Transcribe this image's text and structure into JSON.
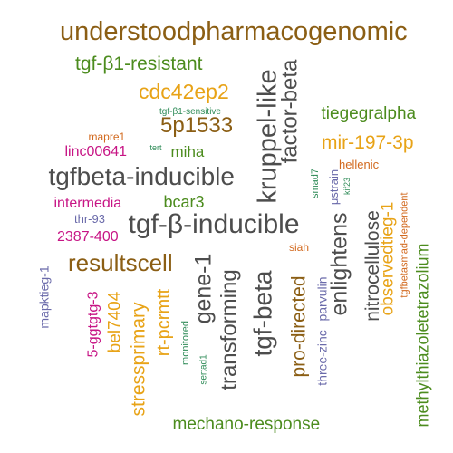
{
  "words": [
    {
      "text": "understoodpharmacogenomic",
      "color": "#8B5E14",
      "rotated": false
    },
    {
      "text": "tgf-β1-resistant",
      "color": "#4C8C1E",
      "rotated": false
    },
    {
      "text": "cdc42ep2",
      "color": "#E8A317",
      "rotated": false
    },
    {
      "text": "tgf-β1-sensitive",
      "color": "#2E8B57",
      "rotated": false
    },
    {
      "text": "5p1533",
      "color": "#8B5E14",
      "rotated": false
    },
    {
      "text": "kruppel-like",
      "color": "#4D4D4D",
      "rotated": true
    },
    {
      "text": "factor-beta",
      "color": "#4D4D4D",
      "rotated": true
    },
    {
      "text": "tiegegralpha",
      "color": "#4C8C1E",
      "rotated": false
    },
    {
      "text": "mapre1",
      "color": "#D2691E",
      "rotated": false
    },
    {
      "text": "mir-197-3p",
      "color": "#E8A317",
      "rotated": false
    },
    {
      "text": "linc00641",
      "color": "#C71585",
      "rotated": false
    },
    {
      "text": "miha",
      "color": "#4C8C1E",
      "rotated": false
    },
    {
      "text": "tert",
      "color": "#2E8B57",
      "rotated": false
    },
    {
      "text": "hellenic",
      "color": "#D2691E",
      "rotated": false
    },
    {
      "text": "tgfbeta-inducible",
      "color": "#4D4D4D",
      "rotated": false
    },
    {
      "text": "smad7",
      "color": "#2E8B57",
      "rotated": true
    },
    {
      "text": "μstrain",
      "color": "#6A6AAA",
      "rotated": true
    },
    {
      "text": "kif23",
      "color": "#2E8B57",
      "rotated": true
    },
    {
      "text": "intermedia",
      "color": "#C71585",
      "rotated": false
    },
    {
      "text": "bcar3",
      "color": "#4C8C1E",
      "rotated": false
    },
    {
      "text": "enlightens",
      "color": "#4D4D4D",
      "rotated": true
    },
    {
      "text": "nitrocellulose",
      "color": "#4D4D4D",
      "rotated": true
    },
    {
      "text": "observedtieg-1",
      "color": "#E8A317",
      "rotated": true
    },
    {
      "text": "tgfbetasmad-dependent",
      "color": "#D2691E",
      "rotated": true
    },
    {
      "text": "thr-93",
      "color": "#6A6AAA",
      "rotated": false
    },
    {
      "text": "tgf-β-inducible",
      "color": "#4D4D4D",
      "rotated": false
    },
    {
      "text": "2387-400",
      "color": "#C71585",
      "rotated": false
    },
    {
      "text": "siah",
      "color": "#D2691E",
      "rotated": false
    },
    {
      "text": "resultscell",
      "color": "#8B5E14",
      "rotated": false
    },
    {
      "text": "mapktieg-1",
      "color": "#6A6AAA",
      "rotated": true
    },
    {
      "text": "5-ggtgtg-3",
      "color": "#C71585",
      "rotated": true
    },
    {
      "text": "bel7404",
      "color": "#E8A317",
      "rotated": true
    },
    {
      "text": "stressprimary",
      "color": "#E8A317",
      "rotated": true
    },
    {
      "text": "rt-pcrmtt",
      "color": "#E8A317",
      "rotated": true
    },
    {
      "text": "monitored",
      "color": "#2E8B57",
      "rotated": true
    },
    {
      "text": "sertad1",
      "color": "#2E8B57",
      "rotated": true
    },
    {
      "text": "gene-1",
      "color": "#4D4D4D",
      "rotated": true
    },
    {
      "text": "transforming",
      "color": "#4D4D4D",
      "rotated": true
    },
    {
      "text": "tgf-beta",
      "color": "#4D4D4D",
      "rotated": true
    },
    {
      "text": "pro-directed",
      "color": "#8B5E14",
      "rotated": true
    },
    {
      "text": "three-zinc",
      "color": "#6A6AAA",
      "rotated": true
    },
    {
      "text": "parvulin",
      "color": "#6A6AAA",
      "rotated": true
    },
    {
      "text": "methylthiazoletetrazolium",
      "color": "#4C8C1E",
      "rotated": true
    },
    {
      "text": "mechano-response",
      "color": "#4C8C1E",
      "rotated": false
    }
  ]
}
